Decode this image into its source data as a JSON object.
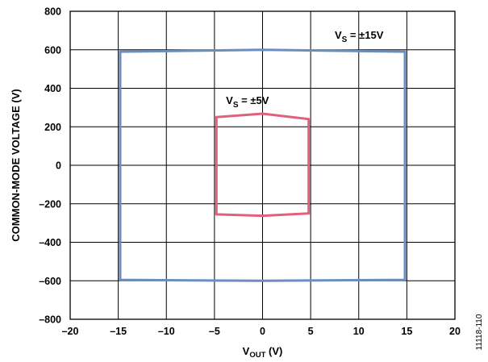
{
  "chart_data": {
    "type": "line",
    "xlabel_main": "V",
    "xlabel_sub": "OUT",
    "xlabel_unit": " (V)",
    "ylabel": "COMMON-MODE VOLTAGE (V)",
    "xlim": [
      -20,
      20
    ],
    "ylim": [
      -800,
      800
    ],
    "x_ticks": [
      -20,
      -15,
      -10,
      -5,
      0,
      5,
      10,
      15,
      20
    ],
    "y_ticks": [
      -800,
      -600,
      -400,
      -200,
      0,
      200,
      400,
      600,
      800
    ],
    "x_tick_labels": [
      "–20",
      "–15",
      "–10",
      "–5",
      "0",
      "5",
      "10",
      "15",
      "20"
    ],
    "y_tick_labels": [
      "–800",
      "–600",
      "–400",
      "–200",
      "0",
      "200",
      "400",
      "600",
      "800"
    ],
    "grid": true,
    "series": [
      {
        "label_main": "V",
        "label_sub": "S",
        "label_rest": " = ±15V",
        "color": "#6c8ebf",
        "points": [
          [
            -14.8,
            590
          ],
          [
            0,
            600
          ],
          [
            14.8,
            590
          ],
          [
            14.8,
            -595
          ],
          [
            0,
            -600
          ],
          [
            -14.8,
            -595
          ],
          [
            -14.8,
            590
          ]
        ]
      },
      {
        "label_main": "V",
        "label_sub": "S",
        "label_rest": " = ±5V",
        "color": "#e0607e",
        "points": [
          [
            -4.8,
            250
          ],
          [
            0,
            268
          ],
          [
            4.8,
            240
          ],
          [
            4.8,
            -250
          ],
          [
            0,
            -262
          ],
          [
            -4.8,
            -255
          ],
          [
            -4.8,
            250
          ]
        ]
      }
    ]
  },
  "figure_id": "11118-110"
}
